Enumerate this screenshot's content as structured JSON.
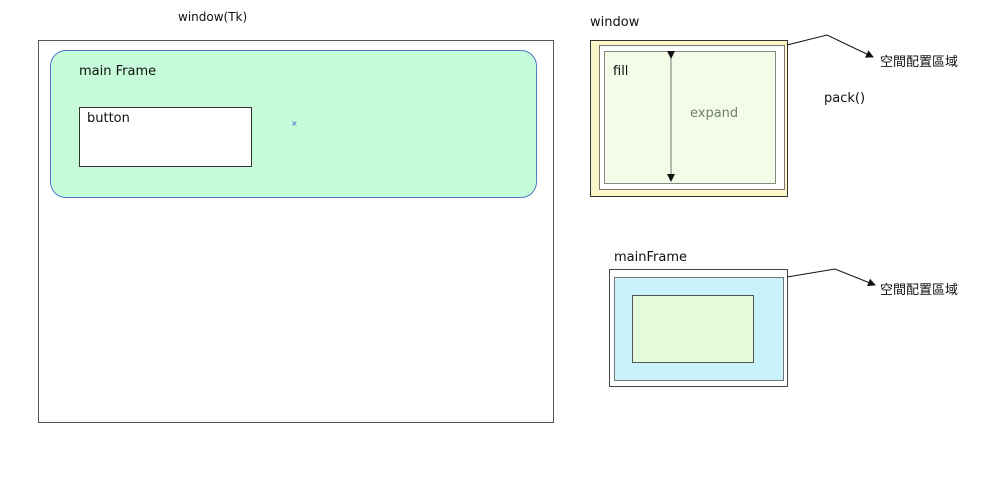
{
  "left_diagram": {
    "window_title": "window(Tk)",
    "main_frame_label": "main  Frame",
    "button_label": "button",
    "cursor_marker": "×"
  },
  "pack_diagram": {
    "window_label": "window",
    "fill_label": "fill",
    "expand_label": "expand",
    "space_area_label": "空間配置區域",
    "pack_label": "pack()"
  },
  "mainframe_diagram": {
    "title": "mainFrame",
    "space_area_label": "空間配置區域"
  },
  "colors": {
    "main_frame_fill": "#c6fbd9",
    "main_frame_border": "#4f79c9",
    "window_yellow": "#fbf6c8",
    "fill_green": "#f3fce7",
    "mainframe_cyan": "#c8f3fa",
    "mainframe_green": "#e4fbdb",
    "expand_text": "#6f7f6f"
  }
}
